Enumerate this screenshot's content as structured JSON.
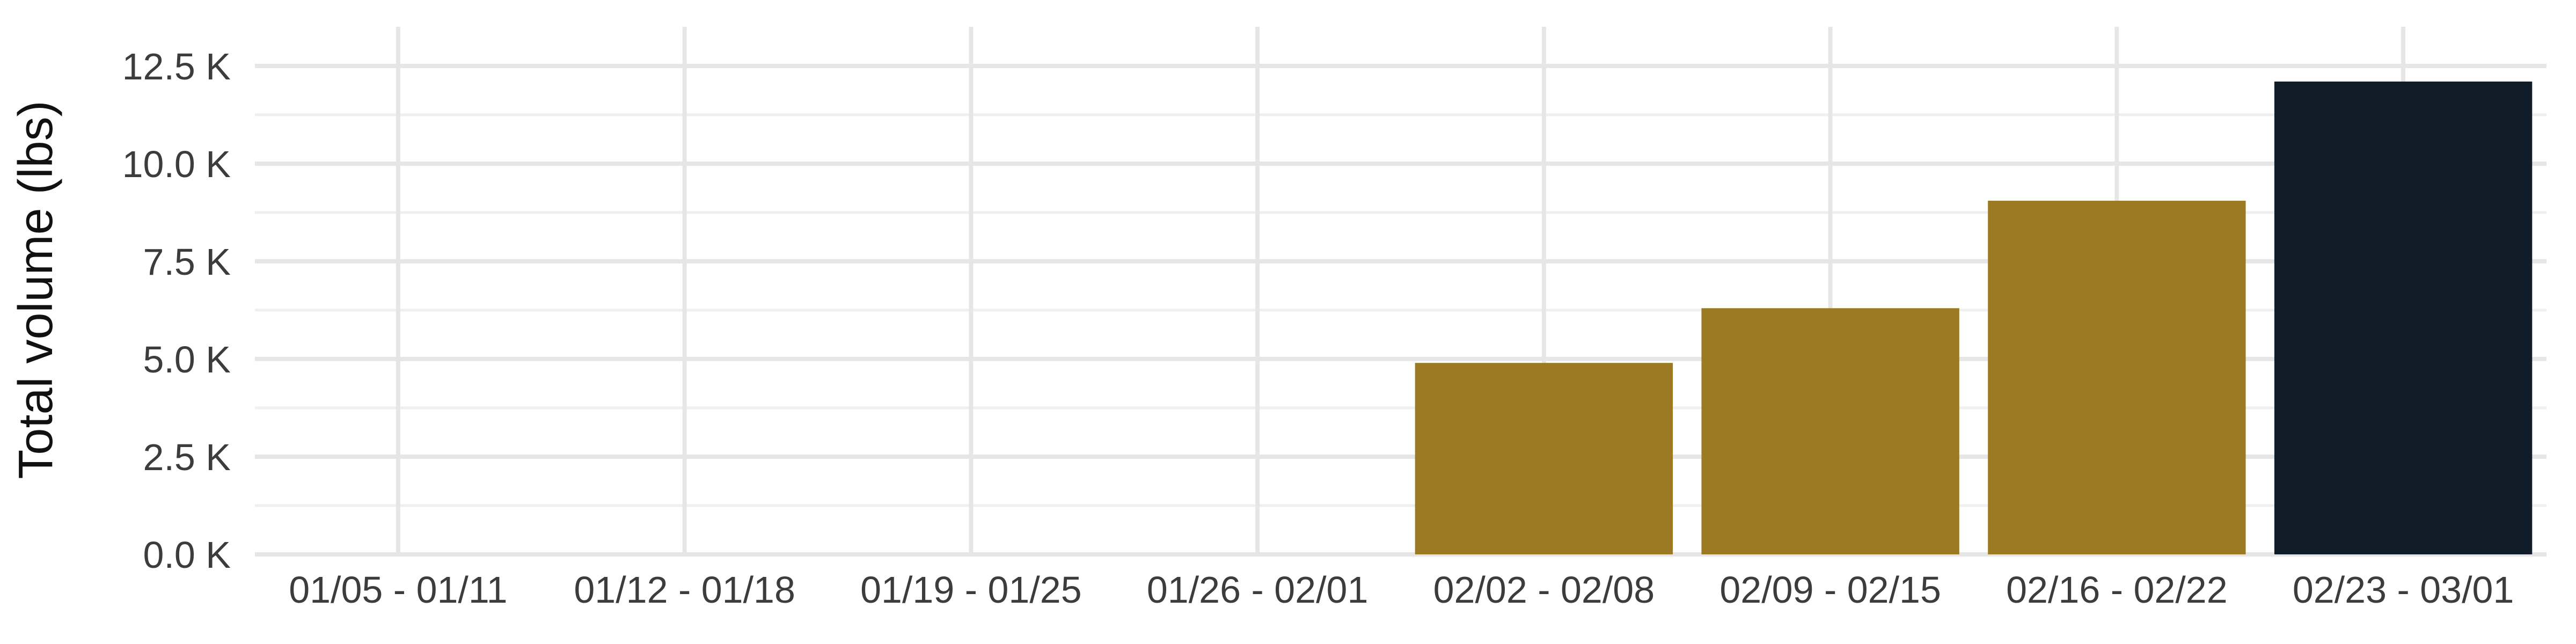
{
  "chart_data": {
    "type": "bar",
    "title": "",
    "xlabel": "",
    "ylabel": "Total volume (lbs)",
    "categories": [
      "01/05 - 01/11",
      "01/12 - 01/18",
      "01/19 - 01/25",
      "01/26 - 02/01",
      "02/02 - 02/08",
      "02/09 - 02/15",
      "02/16 - 02/22",
      "02/23 - 03/01"
    ],
    "values": [
      0,
      0,
      0,
      0,
      4900,
      6300,
      9050,
      12100
    ],
    "bar_colors": [
      "#9c7a24",
      "#9c7a24",
      "#9c7a24",
      "#9c7a24",
      "#9c7a24",
      "#9c7a24",
      "#9c7a24",
      "#101d29"
    ],
    "ylim": [
      0,
      13500
    ],
    "y_ticks": [
      0,
      2500,
      5000,
      7500,
      10000,
      12500
    ],
    "y_tick_labels": [
      "0.0 K",
      "2.5 K",
      "5.0 K",
      "7.5 K",
      "10.0 K",
      "12.5 K"
    ],
    "grid": true,
    "legend": "none"
  }
}
